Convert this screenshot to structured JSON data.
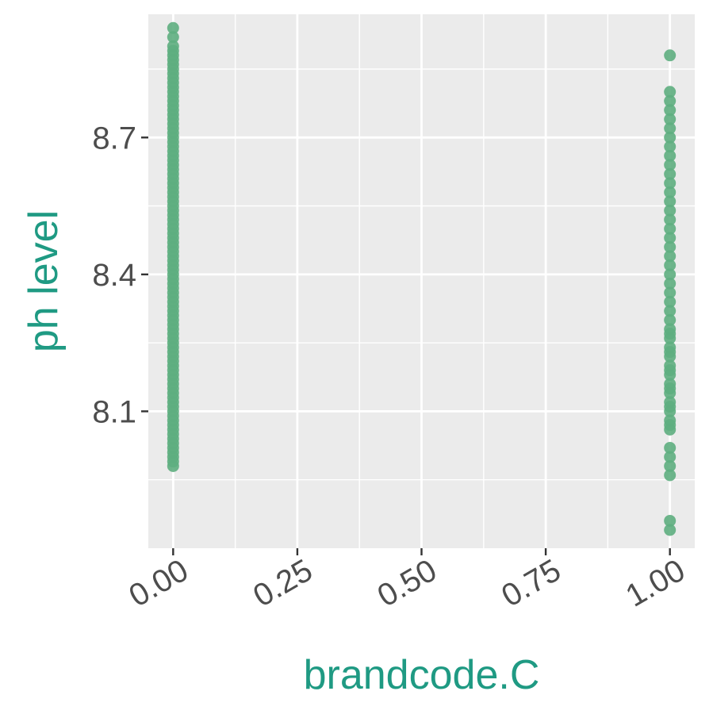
{
  "chart_data": {
    "type": "scatter",
    "title": "",
    "xlabel": "brandcode.C",
    "ylabel": "ph level",
    "xlim": [
      -0.05,
      1.05
    ],
    "ylim": [
      7.8,
      8.97
    ],
    "x_ticks": [
      0.0,
      0.25,
      0.5,
      0.75,
      1.0
    ],
    "x_tick_labels": [
      "0.00",
      "0.25",
      "0.50",
      "0.75",
      "1.00"
    ],
    "y_ticks": [
      8.1,
      8.4,
      8.7
    ],
    "y_tick_labels": [
      "8.1",
      "8.4",
      "8.7"
    ],
    "grid": true,
    "legend": "none",
    "colors": {
      "panel": "#ebebeb",
      "grid": "#ffffff",
      "point": "#5eae7f",
      "axis_title": "#1f9a83",
      "tick_text": "#4d4d4d",
      "tick_mark": "#333333"
    },
    "series": [
      {
        "x": [
          0,
          0,
          0,
          0,
          0,
          0,
          0,
          0,
          0,
          0,
          0,
          0,
          0,
          0,
          0,
          0,
          0,
          0,
          0,
          0,
          0,
          0,
          0,
          0,
          0,
          0,
          0,
          0,
          0,
          0,
          0,
          0,
          0,
          0,
          0,
          0,
          0,
          0,
          0,
          0,
          0,
          0,
          0,
          0,
          0,
          0,
          0,
          0,
          0,
          0,
          0,
          0,
          0,
          0,
          0,
          0,
          0,
          0,
          0,
          0,
          0,
          0,
          0,
          0,
          0,
          0,
          0,
          0,
          0,
          0,
          0,
          0,
          0,
          0,
          0,
          0,
          0,
          0,
          0,
          0,
          0,
          0,
          0,
          0,
          0,
          0,
          0,
          0,
          0,
          0,
          0,
          0,
          0,
          0,
          0
        ],
        "y": [
          7.98,
          8.0,
          8.02,
          8.04,
          8.06,
          8.08,
          8.1,
          8.12,
          8.14,
          8.16,
          8.18,
          8.2,
          8.22,
          8.24,
          8.26,
          8.28,
          8.3,
          8.32,
          8.34,
          8.36,
          8.38,
          8.4,
          8.42,
          8.44,
          8.46,
          8.48,
          8.5,
          8.52,
          8.54,
          8.56,
          8.58,
          8.6,
          8.62,
          8.64,
          8.66,
          8.68,
          8.7,
          8.72,
          8.74,
          8.76,
          8.78,
          8.8,
          8.82,
          8.84,
          8.86,
          8.88,
          8.9,
          8.92,
          8.94,
          7.99,
          8.01,
          8.03,
          8.05,
          8.07,
          8.09,
          8.11,
          8.13,
          8.15,
          8.17,
          8.19,
          8.21,
          8.23,
          8.25,
          8.27,
          8.29,
          8.31,
          8.33,
          8.35,
          8.37,
          8.39,
          8.41,
          8.43,
          8.45,
          8.47,
          8.49,
          8.51,
          8.53,
          8.55,
          8.57,
          8.59,
          8.61,
          8.63,
          8.65,
          8.67,
          8.69,
          8.71,
          8.73,
          8.75,
          8.77,
          8.79,
          8.81,
          8.83,
          8.85,
          8.87,
          8.89
        ]
      },
      {
        "x": [
          1,
          1,
          1,
          1,
          1,
          1,
          1,
          1,
          1,
          1,
          1,
          1,
          1,
          1,
          1,
          1,
          1,
          1,
          1,
          1,
          1,
          1,
          1,
          1,
          1,
          1,
          1,
          1,
          1,
          1,
          1,
          1,
          1,
          1,
          1,
          1,
          1,
          1,
          1,
          1,
          1,
          1,
          1,
          1,
          1,
          1,
          1,
          1,
          1,
          1,
          1
        ],
        "y": [
          7.84,
          7.86,
          7.96,
          7.98,
          8.0,
          8.02,
          8.06,
          8.08,
          8.1,
          8.12,
          8.14,
          8.16,
          8.18,
          8.2,
          8.22,
          8.24,
          8.26,
          8.28,
          8.3,
          8.32,
          8.34,
          8.36,
          8.38,
          8.4,
          8.42,
          8.44,
          8.46,
          8.48,
          8.5,
          8.52,
          8.54,
          8.56,
          8.58,
          8.6,
          8.62,
          8.64,
          8.66,
          8.68,
          8.7,
          8.72,
          8.74,
          8.76,
          8.78,
          8.8,
          8.88,
          8.07,
          8.11,
          8.15,
          8.19,
          8.23,
          8.27
        ]
      }
    ]
  }
}
